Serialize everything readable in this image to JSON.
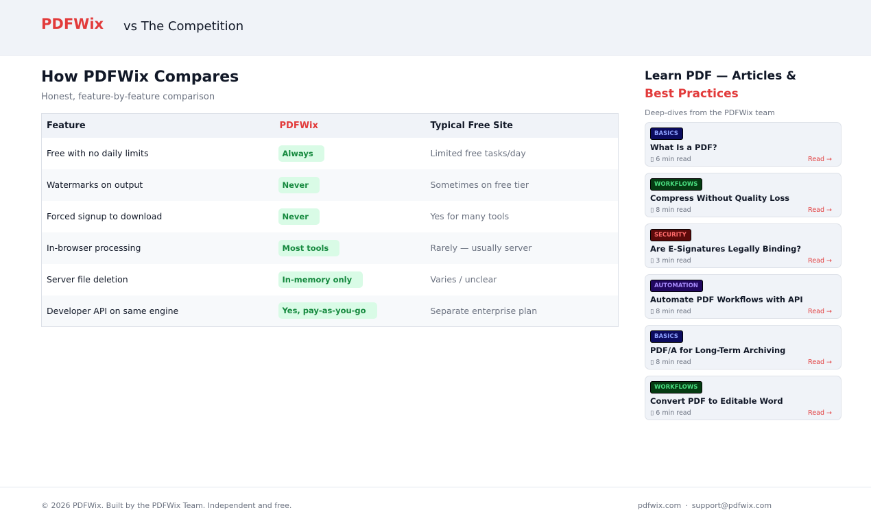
{
  "header": {
    "logo": "PDFWix",
    "subtitle": "vs The Competition"
  },
  "main": {
    "title": "How PDFWix Compares",
    "subtitle": "Honest, feature-by-feature comparison",
    "columns": [
      "Feature",
      "PDFWix",
      "Typical Free Site"
    ],
    "rows": [
      {
        "feature": "Free with no daily limits",
        "pdfwix": "Always",
        "other": "Limited free tasks/day"
      },
      {
        "feature": "Watermarks on output",
        "pdfwix": "Never",
        "other": "Sometimes on free tier"
      },
      {
        "feature": "Forced signup to download",
        "pdfwix": "Never",
        "other": "Yes for many tools"
      },
      {
        "feature": "In-browser processing",
        "pdfwix": "Most tools",
        "other": "Rarely — usually server"
      },
      {
        "feature": "Server file deletion",
        "pdfwix": "In-memory only",
        "other": "Varies / unclear"
      },
      {
        "feature": "Developer API on same engine",
        "pdfwix": "Yes, pay-as-you-go",
        "other": "Separate enterprise plan"
      }
    ]
  },
  "sidebar": {
    "title_part1": "Learn PDF — Articles &",
    "title_part2": "Best Practices",
    "subtitle": "Deep-dives from the PDFWix team",
    "articles": [
      {
        "tag": "BASICS",
        "title": "What Is a PDF?",
        "meta": "6 min read",
        "read": "Read →"
      },
      {
        "tag": "WORKFLOWS",
        "title": "Compress Without Quality Loss",
        "meta": "8 min read",
        "read": "Read →"
      },
      {
        "tag": "SECURITY",
        "title": "Are E-Signatures Legally Binding?",
        "meta": "3 min read",
        "read": "Read →"
      },
      {
        "tag": "AUTOMATION",
        "title": "Automate PDF Workflows with API",
        "meta": "8 min read",
        "read": "Read →"
      },
      {
        "tag": "BASICS",
        "title": "PDF/A for Long-Term Archiving",
        "meta": "8 min read",
        "read": "Read →"
      },
      {
        "tag": "WORKFLOWS",
        "title": "Convert PDF to Editable Word",
        "meta": "6 min read",
        "read": "Read →"
      }
    ]
  },
  "tag_colors": {
    "BASICS": {
      "bg": "#0b0b5e",
      "fg": "#8ea2ff"
    },
    "WORKFLOWS": {
      "bg": "#053b12",
      "fg": "#4ade80"
    },
    "SECURITY": {
      "bg": "#5c0a0a",
      "fg": "#ff6b6b"
    },
    "AUTOMATION": {
      "bg": "#20075e",
      "fg": "#a78bfa"
    }
  },
  "footer": {
    "copyright": "© 2026 PDFWix. Built by the PDFWix Team. Independent and free.",
    "link1": "pdfwix.com",
    "separator": "·",
    "link2": "support@pdfwix.com"
  },
  "colors": {
    "brand": "#e23b3b",
    "pill_bg": "#d9fbe6",
    "pill_fg": "#15893e"
  }
}
